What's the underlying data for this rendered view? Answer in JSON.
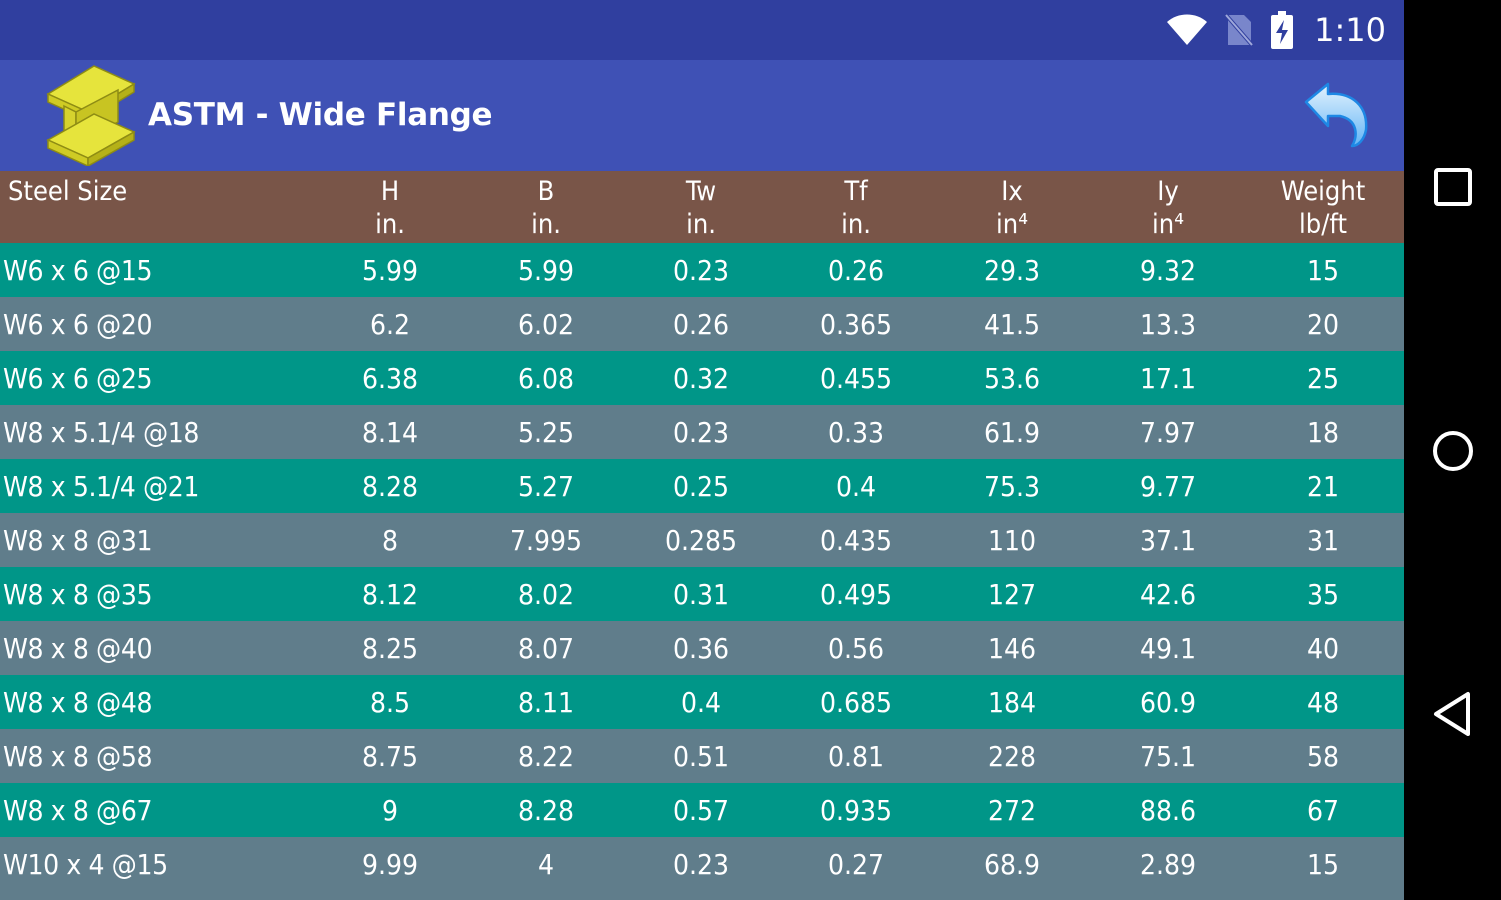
{
  "status_bar": {
    "time": "1:10",
    "icons": [
      "wifi-icon",
      "no-sim-icon",
      "battery-charging-icon"
    ]
  },
  "app_bar": {
    "title": "ASTM - Wide Flange",
    "logo_icon": "i-beam-icon",
    "back_icon": "back-arrow-icon"
  },
  "table": {
    "headers": [
      {
        "name": "Steel Size",
        "unit": ""
      },
      {
        "name": "H",
        "unit": "in."
      },
      {
        "name": "B",
        "unit": "in."
      },
      {
        "name": "Tw",
        "unit": "in."
      },
      {
        "name": "Tf",
        "unit": "in."
      },
      {
        "name": "Ix",
        "unit": "in⁴"
      },
      {
        "name": "Iy",
        "unit": "in⁴"
      },
      {
        "name": "Weight",
        "unit": "lb/ft"
      }
    ],
    "rows": [
      [
        "W6 x 6 @15",
        "5.99",
        "5.99",
        "0.23",
        "0.26",
        "29.3",
        "9.32",
        "15"
      ],
      [
        "W6 x 6 @20",
        "6.2",
        "6.02",
        "0.26",
        "0.365",
        "41.5",
        "13.3",
        "20"
      ],
      [
        "W6 x 6 @25",
        "6.38",
        "6.08",
        "0.32",
        "0.455",
        "53.6",
        "17.1",
        "25"
      ],
      [
        "W8 x 5.1/4 @18",
        "8.14",
        "5.25",
        "0.23",
        "0.33",
        "61.9",
        "7.97",
        "18"
      ],
      [
        "W8 x 5.1/4 @21",
        "8.28",
        "5.27",
        "0.25",
        "0.4",
        "75.3",
        "9.77",
        "21"
      ],
      [
        "W8 x 8 @31",
        "8",
        "7.995",
        "0.285",
        "0.435",
        "110",
        "37.1",
        "31"
      ],
      [
        "W8 x 8 @35",
        "8.12",
        "8.02",
        "0.31",
        "0.495",
        "127",
        "42.6",
        "35"
      ],
      [
        "W8 x 8 @40",
        "8.25",
        "8.07",
        "0.36",
        "0.56",
        "146",
        "49.1",
        "40"
      ],
      [
        "W8 x 8 @48",
        "8.5",
        "8.11",
        "0.4",
        "0.685",
        "184",
        "60.9",
        "48"
      ],
      [
        "W8 x 8 @58",
        "8.75",
        "8.22",
        "0.51",
        "0.81",
        "228",
        "75.1",
        "58"
      ],
      [
        "W8 x 8 @67",
        "9",
        "8.28",
        "0.57",
        "0.935",
        "272",
        "88.6",
        "67"
      ],
      [
        "W10 x 4 @15",
        "9.99",
        "4",
        "0.23",
        "0.27",
        "68.9",
        "2.89",
        "15"
      ]
    ]
  },
  "nav_bar": {
    "buttons": [
      "recents-square-icon",
      "home-circle-icon",
      "back-triangle-icon"
    ]
  },
  "colors": {
    "status_bar": "#303F9F",
    "app_bar": "#3F51B5",
    "header_row": "#795548",
    "row_teal": "#009688",
    "row_gray": "#607D8B"
  }
}
